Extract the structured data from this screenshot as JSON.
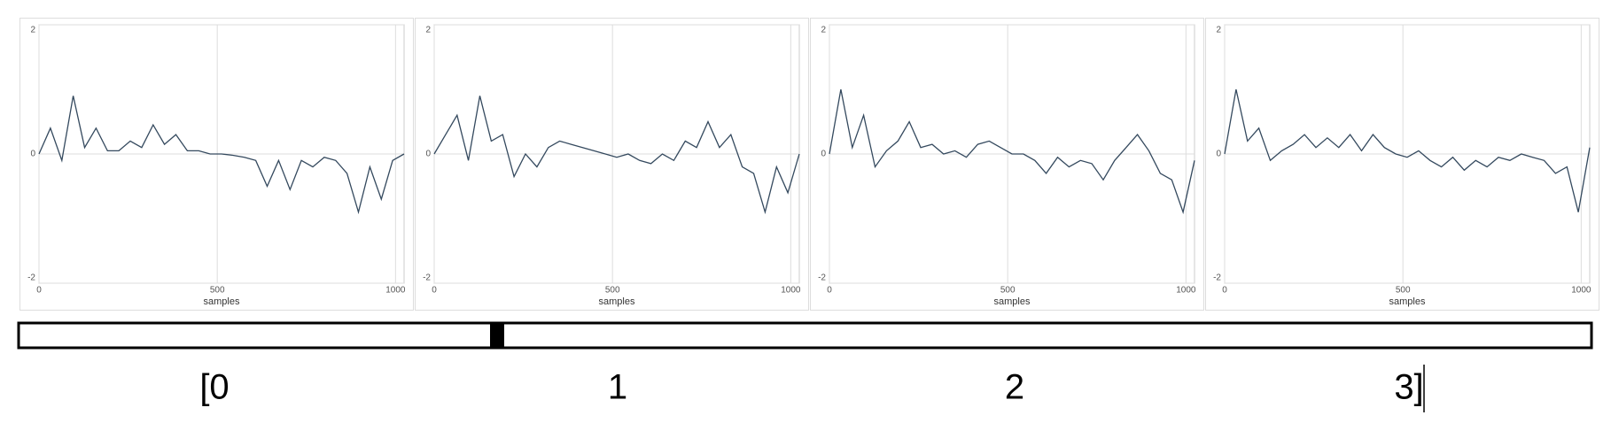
{
  "chart_data": [
    {
      "type": "line",
      "xlabel": "samples",
      "xlim": [
        0,
        1024
      ],
      "ylim": [
        -2,
        2
      ],
      "xticks": [
        0,
        500,
        1000
      ],
      "yticks": [
        -2,
        0,
        2
      ],
      "grid": true,
      "color": "#34495e",
      "x": [
        0,
        32,
        64,
        96,
        128,
        160,
        192,
        224,
        256,
        288,
        320,
        352,
        384,
        416,
        448,
        480,
        512,
        544,
        576,
        608,
        640,
        672,
        704,
        736,
        768,
        800,
        832,
        864,
        896,
        928,
        960,
        992,
        1024
      ],
      "values": [
        0,
        0.4,
        -0.1,
        0.9,
        0.1,
        0.4,
        0.05,
        0.05,
        0.2,
        0.1,
        0.45,
        0.15,
        0.3,
        0.05,
        0.05,
        0,
        0,
        -0.02,
        -0.05,
        -0.1,
        -0.5,
        -0.1,
        -0.55,
        -0.1,
        -0.2,
        -0.05,
        -0.1,
        -0.3,
        -0.9,
        -0.2,
        -0.7,
        -0.1,
        0
      ]
    },
    {
      "type": "line",
      "xlabel": "samples",
      "xlim": [
        0,
        1024
      ],
      "ylim": [
        -2,
        2
      ],
      "xticks": [
        0,
        500,
        1000
      ],
      "yticks": [
        -2,
        0,
        2
      ],
      "grid": true,
      "color": "#34495e",
      "x": [
        0,
        32,
        64,
        96,
        128,
        160,
        192,
        224,
        256,
        288,
        320,
        352,
        384,
        416,
        448,
        480,
        512,
        544,
        576,
        608,
        640,
        672,
        704,
        736,
        768,
        800,
        832,
        864,
        896,
        928,
        960,
        992,
        1024
      ],
      "values": [
        0,
        0.3,
        0.6,
        -0.1,
        0.9,
        0.2,
        0.3,
        -0.35,
        0,
        -0.2,
        0.1,
        0.2,
        0.15,
        0.1,
        0.05,
        0,
        -0.05,
        0,
        -0.1,
        -0.15,
        0,
        -0.1,
        0.2,
        0.1,
        0.5,
        0.1,
        0.3,
        -0.2,
        -0.3,
        -0.9,
        -0.2,
        -0.6,
        0
      ]
    },
    {
      "type": "line",
      "xlabel": "samples",
      "xlim": [
        0,
        1024
      ],
      "ylim": [
        -2,
        2
      ],
      "xticks": [
        0,
        500,
        1000
      ],
      "yticks": [
        -2,
        0,
        2
      ],
      "grid": true,
      "color": "#34495e",
      "x": [
        0,
        32,
        64,
        96,
        128,
        160,
        192,
        224,
        256,
        288,
        320,
        352,
        384,
        416,
        448,
        480,
        512,
        544,
        576,
        608,
        640,
        672,
        704,
        736,
        768,
        800,
        832,
        864,
        896,
        928,
        960,
        992,
        1024
      ],
      "values": [
        0,
        1.0,
        0.1,
        0.6,
        -0.2,
        0.05,
        0.2,
        0.5,
        0.1,
        0.15,
        0,
        0.05,
        -0.05,
        0.15,
        0.2,
        0.1,
        0,
        0,
        -0.1,
        -0.3,
        -0.05,
        -0.2,
        -0.1,
        -0.15,
        -0.4,
        -0.1,
        0.1,
        0.3,
        0.05,
        -0.3,
        -0.4,
        -0.9,
        -0.1
      ]
    },
    {
      "type": "line",
      "xlabel": "samples",
      "xlim": [
        0,
        1024
      ],
      "ylim": [
        -2,
        2
      ],
      "xticks": [
        0,
        500,
        1000
      ],
      "yticks": [
        -2,
        0,
        2
      ],
      "grid": true,
      "color": "#34495e",
      "x": [
        0,
        32,
        64,
        96,
        128,
        160,
        192,
        224,
        256,
        288,
        320,
        352,
        384,
        416,
        448,
        480,
        512,
        544,
        576,
        608,
        640,
        672,
        704,
        736,
        768,
        800,
        832,
        864,
        896,
        928,
        960,
        992,
        1024
      ],
      "values": [
        0,
        1.0,
        0.2,
        0.4,
        -0.1,
        0.05,
        0.15,
        0.3,
        0.1,
        0.25,
        0.1,
        0.3,
        0.05,
        0.3,
        0.1,
        0,
        -0.05,
        0.05,
        -0.1,
        -0.2,
        -0.05,
        -0.25,
        -0.1,
        -0.2,
        -0.05,
        -0.1,
        0,
        -0.05,
        -0.1,
        -0.3,
        -0.2,
        -0.9,
        0.1
      ]
    }
  ],
  "slider": {
    "labels": [
      "[0",
      "1",
      "2",
      "3]"
    ]
  }
}
